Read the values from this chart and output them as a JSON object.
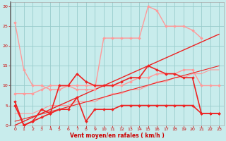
{
  "xlabel": "Vent moyen/en rafales ( km/h )",
  "background_color": "#c8ecec",
  "grid_color": "#99cccc",
  "xlim": [
    -0.5,
    23.5
  ],
  "ylim": [
    0,
    31
  ],
  "xticks": [
    0,
    1,
    2,
    3,
    4,
    5,
    6,
    7,
    8,
    9,
    10,
    11,
    12,
    13,
    14,
    15,
    16,
    17,
    18,
    19,
    20,
    21,
    22,
    23
  ],
  "yticks": [
    0,
    5,
    10,
    15,
    20,
    25,
    30
  ],
  "series": [
    {
      "x": [
        0,
        1,
        2,
        3,
        4,
        5,
        6,
        7,
        8,
        9,
        10,
        11,
        12,
        13,
        14,
        15,
        16,
        17,
        18,
        19,
        20,
        21
      ],
      "y": [
        26,
        14,
        10,
        10,
        9,
        9,
        10,
        9,
        9,
        9,
        22,
        22,
        22,
        22,
        22,
        30,
        29,
        25,
        25,
        25,
        24,
        22
      ],
      "color": "#ff9999",
      "marker": "D",
      "markersize": 2,
      "linewidth": 1.0,
      "zorder": 4
    },
    {
      "x": [
        0,
        1,
        2,
        3,
        4,
        5,
        6,
        7,
        8,
        9,
        10,
        11,
        12,
        13,
        14,
        15,
        16,
        17,
        18,
        19,
        20,
        21,
        22,
        23
      ],
      "y": [
        8,
        8,
        8,
        9,
        10,
        10,
        10,
        10,
        10,
        10,
        10,
        10,
        10,
        11,
        12,
        12,
        13,
        13,
        13,
        14,
        14,
        10,
        10,
        10
      ],
      "color": "#ff9999",
      "marker": "D",
      "markersize": 2,
      "linewidth": 1.0,
      "zorder": 3
    },
    {
      "x": [
        0,
        1,
        2,
        3,
        4,
        5,
        6,
        7,
        8,
        9,
        10,
        11,
        12,
        13,
        14,
        15,
        16,
        17,
        18,
        19,
        20,
        21,
        22,
        23
      ],
      "y": [
        3,
        3,
        3,
        4,
        5,
        5,
        5,
        6,
        6,
        6,
        7,
        8,
        8,
        9,
        9,
        10,
        11,
        11,
        12,
        12,
        13,
        13,
        14,
        14
      ],
      "color": "#ff9999",
      "marker": null,
      "linewidth": 0.8,
      "zorder": 2
    },
    {
      "x": [
        0,
        1,
        2,
        3,
        4,
        5,
        6,
        7,
        8,
        9,
        10,
        11,
        12,
        13,
        14,
        15,
        16,
        17,
        18,
        19,
        20,
        21,
        22,
        23
      ],
      "y": [
        6,
        0,
        1,
        4,
        3,
        10,
        10,
        13,
        11,
        10,
        10,
        10,
        11,
        12,
        12,
        15,
        14,
        13,
        13,
        12,
        12,
        3,
        3,
        3
      ],
      "color": "#ee2222",
      "marker": "D",
      "markersize": 2,
      "linewidth": 1.2,
      "zorder": 6
    },
    {
      "x": [
        0,
        1,
        2,
        3,
        4,
        5,
        6,
        7,
        8,
        9,
        10,
        11,
        12,
        13,
        14,
        15,
        16,
        17,
        18,
        19,
        20,
        21,
        22,
        23
      ],
      "y": [
        5,
        0,
        1,
        2,
        3,
        4,
        4,
        7,
        1,
        4,
        4,
        4,
        5,
        5,
        5,
        5,
        5,
        5,
        5,
        5,
        5,
        3,
        3,
        3
      ],
      "color": "#ee2222",
      "marker": "D",
      "markersize": 2,
      "linewidth": 1.2,
      "zorder": 6
    },
    {
      "x": [
        0,
        23
      ],
      "y": [
        0,
        23
      ],
      "color": "#ee2222",
      "marker": null,
      "linewidth": 1.0,
      "linestyle": "-",
      "zorder": 3
    },
    {
      "x": [
        0,
        23
      ],
      "y": [
        1,
        15
      ],
      "color": "#ee2222",
      "marker": null,
      "linewidth": 0.8,
      "linestyle": "-",
      "zorder": 3
    }
  ]
}
